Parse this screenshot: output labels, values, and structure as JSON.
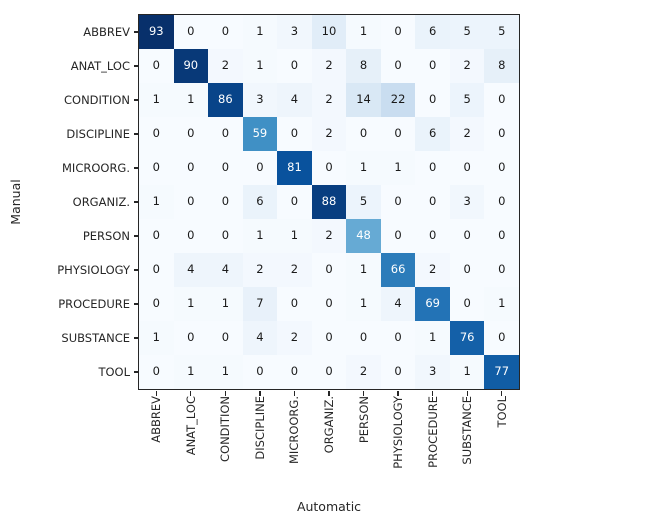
{
  "chart_data": {
    "type": "heatmap",
    "title": "",
    "xlabel": "Automatic",
    "ylabel": "Manual",
    "colormap": "Blues",
    "categories": [
      "ABBREV",
      "ANAT_LOC",
      "CONDITION",
      "DISCIPLINE",
      "MICROORG.",
      "ORGANIZ.",
      "PERSON",
      "PHYSIOLOGY",
      "PROCEDURE",
      "SUBSTANCE",
      "TOOL"
    ],
    "matrix": [
      [
        93,
        0,
        0,
        1,
        3,
        10,
        1,
        0,
        6,
        5,
        5
      ],
      [
        0,
        90,
        2,
        1,
        0,
        2,
        8,
        0,
        0,
        2,
        8
      ],
      [
        1,
        1,
        86,
        3,
        4,
        2,
        14,
        22,
        0,
        5,
        0
      ],
      [
        0,
        0,
        0,
        59,
        0,
        2,
        0,
        0,
        6,
        2,
        0
      ],
      [
        0,
        0,
        0,
        0,
        81,
        0,
        1,
        1,
        0,
        0,
        0
      ],
      [
        1,
        0,
        0,
        6,
        0,
        88,
        5,
        0,
        0,
        3,
        0
      ],
      [
        0,
        0,
        0,
        1,
        1,
        2,
        48,
        0,
        0,
        0,
        0
      ],
      [
        0,
        4,
        4,
        2,
        2,
        0,
        1,
        66,
        2,
        0,
        0
      ],
      [
        0,
        1,
        1,
        7,
        0,
        0,
        1,
        4,
        69,
        0,
        1
      ],
      [
        1,
        0,
        0,
        4,
        2,
        0,
        0,
        0,
        1,
        76,
        0
      ],
      [
        0,
        1,
        1,
        0,
        0,
        0,
        2,
        0,
        3,
        1,
        77
      ]
    ],
    "vmin": 0,
    "vmax": 93,
    "grid": false,
    "legend": "none",
    "annotations": true,
    "colors": {
      "cmap_low": "#f7fbff",
      "cmap_high": "#08306b",
      "dark_text": "#1a1a1a",
      "light_text": "#ffffff",
      "spine": "#262626",
      "background": "#ffffff"
    }
  }
}
